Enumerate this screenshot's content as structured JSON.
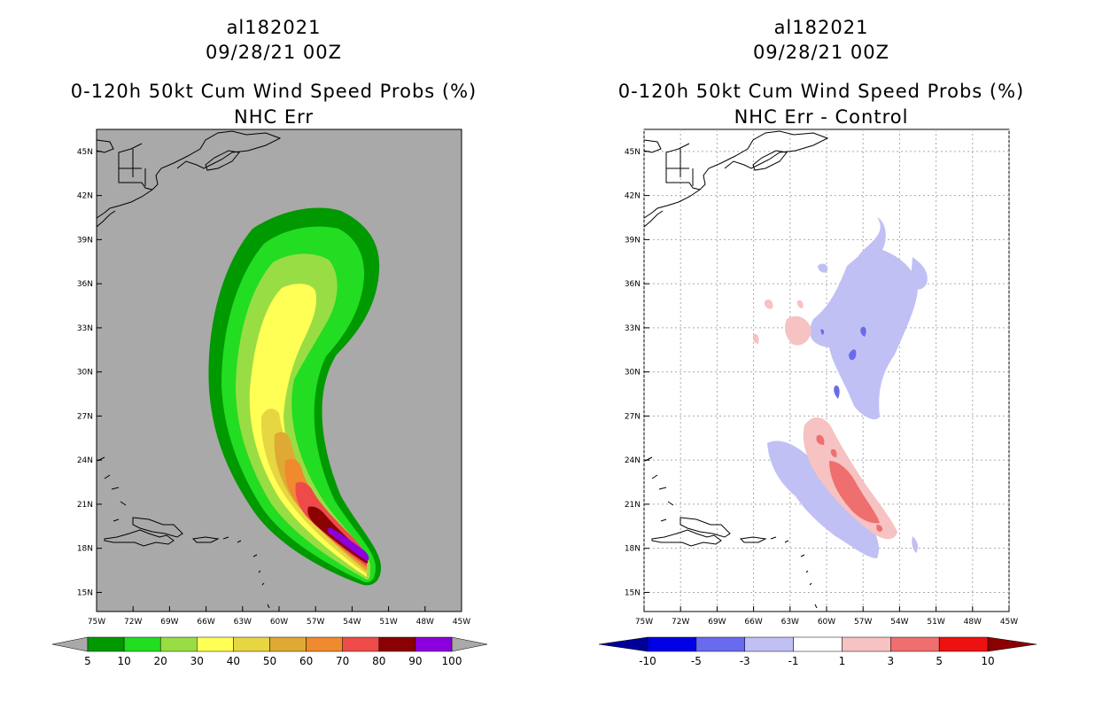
{
  "chart_data": [
    {
      "type": "heatmap",
      "storm_id": "al182021",
      "date": "09/28/21 00Z",
      "title": "0-120h 50kt Cum Wind Speed Probs (%)",
      "subtitle": "NHC Err",
      "lon_ticks": [
        "75W",
        "72W",
        "69W",
        "66W",
        "63W",
        "60W",
        "57W",
        "54W",
        "51W",
        "48W",
        "45W"
      ],
      "lat_ticks": [
        "45N",
        "42N",
        "39N",
        "36N",
        "33N",
        "30N",
        "27N",
        "24N",
        "21N",
        "18N",
        "15N"
      ],
      "xlim": [
        -75,
        -45
      ],
      "ylim": [
        13.7,
        46.5
      ],
      "grid": false,
      "background": "#a9a9a9",
      "colorbar": {
        "labels": [
          "5",
          "10",
          "20",
          "30",
          "40",
          "50",
          "60",
          "70",
          "80",
          "90",
          "100"
        ],
        "colors": [
          "#009900",
          "#22dd22",
          "#99dd44",
          "#ffff55",
          "#e6d642",
          "#dfaa33",
          "#ef8a2f",
          "#ef4a4a",
          "#8b0000",
          "#8b00dd"
        ],
        "end_color": "#a9a9a9"
      }
    },
    {
      "type": "heatmap",
      "storm_id": "al182021",
      "date": "09/28/21 00Z",
      "title": "0-120h 50kt Cum Wind Speed Probs (%)",
      "subtitle": "NHC Err - Control",
      "lon_ticks": [
        "75W",
        "72W",
        "69W",
        "66W",
        "63W",
        "60W",
        "57W",
        "54W",
        "51W",
        "48W",
        "45W"
      ],
      "lat_ticks": [
        "45N",
        "42N",
        "39N",
        "36N",
        "33N",
        "30N",
        "27N",
        "24N",
        "21N",
        "18N",
        "15N"
      ],
      "xlim": [
        -75,
        -45
      ],
      "ylim": [
        13.7,
        46.5
      ],
      "grid": true,
      "background": "#ffffff",
      "colorbar": {
        "labels": [
          "-10",
          "-5",
          "-3",
          "-1",
          "1",
          "3",
          "5",
          "10"
        ],
        "colors": [
          "#0000e6",
          "#6a6aee",
          "#c0c0f5",
          "#ffffff",
          "#f6c2c2",
          "#ef6e6e",
          "#ee1111"
        ],
        "end_colors": [
          "#000099",
          "#8b0000"
        ]
      }
    }
  ]
}
